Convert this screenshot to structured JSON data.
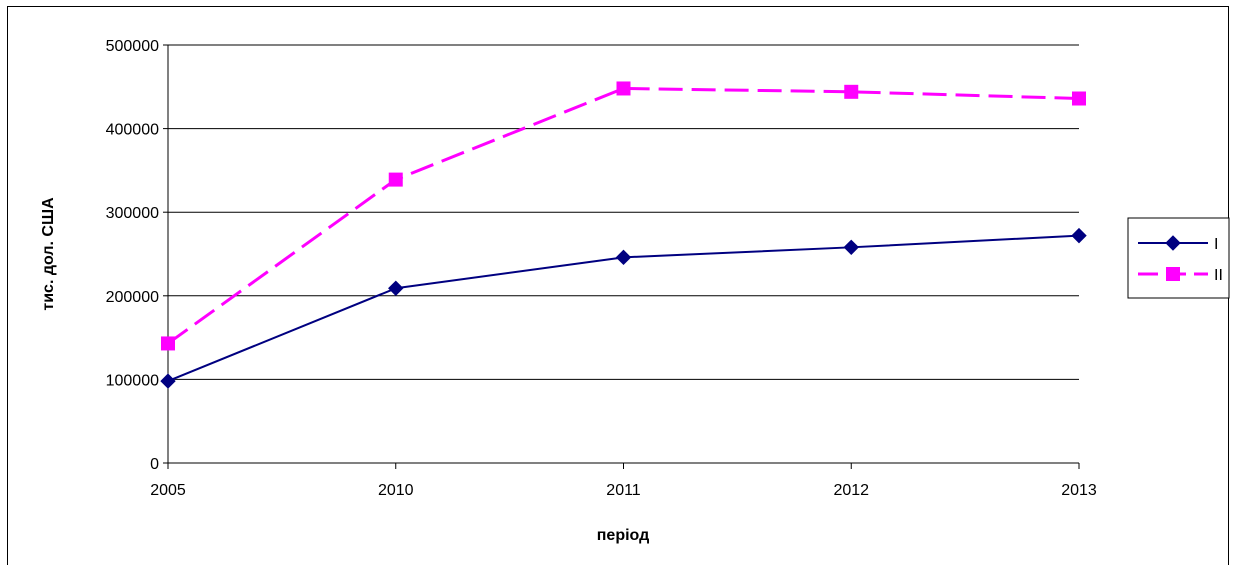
{
  "chart_data": {
    "type": "line",
    "title": "",
    "xlabel": "період",
    "ylabel": "тис. дол. США",
    "categories": [
      "2005",
      "2010",
      "2011",
      "2012",
      "2013"
    ],
    "ylim": [
      0,
      500000
    ],
    "yticks": [
      0,
      100000,
      200000,
      300000,
      400000,
      500000
    ],
    "ytick_labels": [
      "0",
      "100000",
      "200000",
      "300000",
      "400000",
      "500000"
    ],
    "grid": true,
    "legend_position": "right",
    "series": [
      {
        "name": "I",
        "values": [
          98000,
          209000,
          246000,
          258000,
          272000
        ],
        "color": "#000080",
        "line_style": "solid",
        "marker": "diamond"
      },
      {
        "name": "II",
        "values": [
          143000,
          339000,
          448000,
          444000,
          436000
        ],
        "color": "#FF00FF",
        "line_style": "dashed",
        "marker": "square"
      }
    ]
  }
}
